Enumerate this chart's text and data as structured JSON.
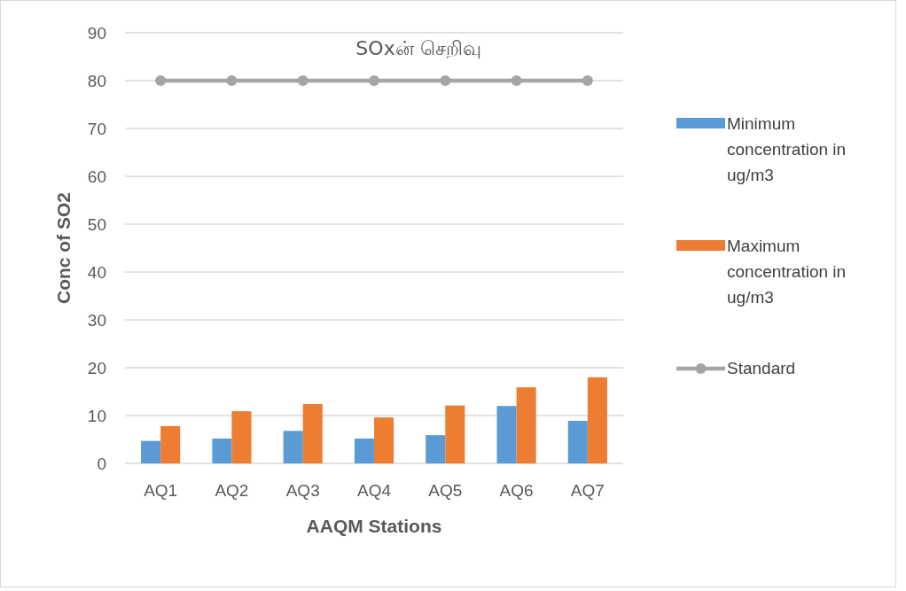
{
  "chart_data": {
    "type": "bar",
    "title": "SOxன் செறிவு",
    "xlabel": "AAQM Stations",
    "ylabel": "Conc of SO2",
    "categories": [
      "AQ1",
      "AQ2",
      "AQ3",
      "AQ4",
      "AQ5",
      "AQ6",
      "AQ7"
    ],
    "series": [
      {
        "name": "Minimum concentration in ug/m3",
        "color": "#5b9bd5",
        "values": [
          4.7,
          5.2,
          6.8,
          5.2,
          5.9,
          12.0,
          8.9
        ]
      },
      {
        "name": "Maximum concentration in ug/m3",
        "color": "#ed7d31",
        "values": [
          7.8,
          10.9,
          12.4,
          9.6,
          12.1,
          15.9,
          18.0
        ]
      },
      {
        "name": "Standard",
        "type": "line",
        "color": "#a5a5a5",
        "marker": "circle",
        "values": [
          80,
          80,
          80,
          80,
          80,
          80,
          80
        ]
      }
    ],
    "ylim": [
      0,
      90
    ],
    "yticks": [
      0,
      10,
      20,
      30,
      40,
      50,
      60,
      70,
      80,
      90
    ],
    "grid": "y",
    "legend": "right"
  }
}
